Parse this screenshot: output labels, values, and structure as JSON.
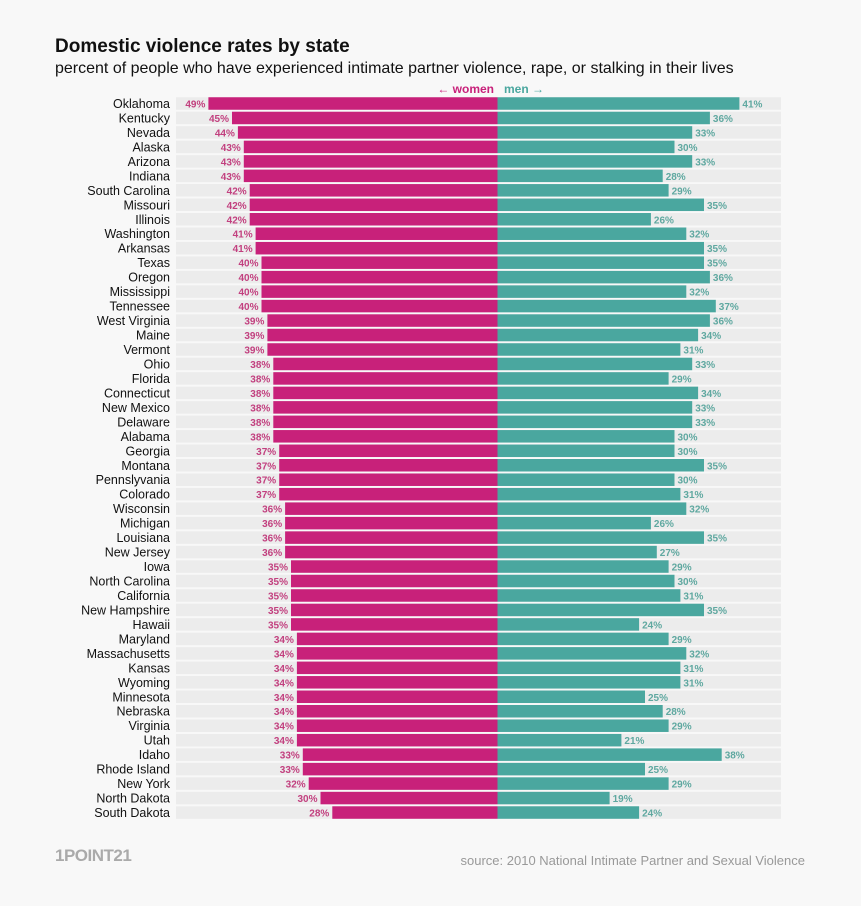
{
  "chart_data": {
    "type": "bar",
    "orientation": "horizontal-diverging",
    "title": "Domestic violence rates by state",
    "subtitle": "percent of people who have experienced intimate partner violence, rape, or stalking in their lives",
    "legend": {
      "women": "← women",
      "men": "men →"
    },
    "colors": {
      "women": "#c8217a",
      "men": "#4aa79f",
      "track": "#ececec",
      "women_label": "#c2407f",
      "men_label": "#5fa8a0"
    },
    "value_format": "percent",
    "categories": [
      "Oklahoma",
      "Kentucky",
      "Nevada",
      "Alaska",
      "Arizona",
      "Indiana",
      "South Carolina",
      "Missouri",
      "Illinois",
      "Washington",
      "Arkansas",
      "Texas",
      "Oregon",
      "Mississippi",
      "Tennessee",
      "West Virginia",
      "Maine",
      "Vermont",
      "Ohio",
      "Florida",
      "Connecticut",
      "New Mexico",
      "Delaware",
      "Alabama",
      "Georgia",
      "Montana",
      "Pennslyvania",
      "Colorado",
      "Wisconsin",
      "Michigan",
      "Louisiana",
      "New Jersey",
      "Iowa",
      "North Carolina",
      "California",
      "New Hampshire",
      "Hawaii",
      "Maryland",
      "Massachusetts",
      "Kansas",
      "Wyoming",
      "Minnesota",
      "Nebraska",
      "Virginia",
      "Utah",
      "Idaho",
      "Rhode Island",
      "New York",
      "North Dakota",
      "South Dakota"
    ],
    "series": [
      {
        "name": "women",
        "values": [
          49,
          45,
          44,
          43,
          43,
          43,
          42,
          42,
          42,
          41,
          41,
          40,
          40,
          40,
          40,
          39,
          39,
          39,
          38,
          38,
          38,
          38,
          38,
          38,
          37,
          37,
          37,
          37,
          36,
          36,
          36,
          36,
          35,
          35,
          35,
          35,
          35,
          34,
          34,
          34,
          34,
          34,
          34,
          34,
          34,
          33,
          33,
          32,
          30,
          28
        ]
      },
      {
        "name": "men",
        "values": [
          41,
          36,
          33,
          30,
          33,
          28,
          29,
          35,
          26,
          32,
          35,
          35,
          36,
          32,
          37,
          36,
          34,
          31,
          33,
          29,
          34,
          33,
          33,
          30,
          30,
          35,
          30,
          31,
          32,
          26,
          35,
          27,
          29,
          30,
          31,
          35,
          24,
          29,
          32,
          31,
          31,
          25,
          28,
          29,
          21,
          38,
          25,
          29,
          19,
          24
        ]
      }
    ]
  },
  "footer": {
    "logo": "1POINT21",
    "source": "source: 2010 National Intimate Partner and Sexual Violence"
  }
}
